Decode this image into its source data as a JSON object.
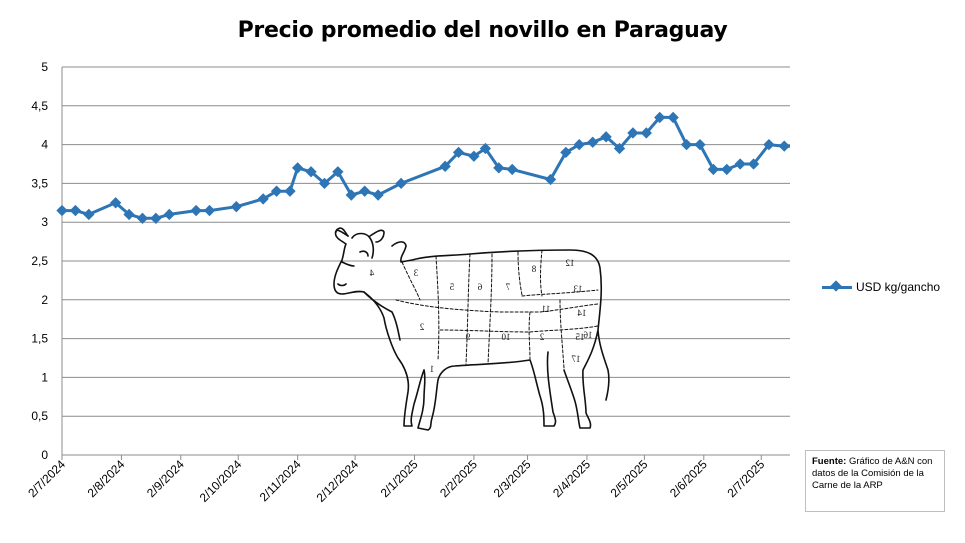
{
  "chart_data": {
    "type": "line",
    "title": "Precio promedio del novillo en Paraguay",
    "ylim": [
      0,
      5
    ],
    "y_ticks": [
      "0",
      "0,5",
      "1",
      "1,5",
      "2",
      "2,5",
      "3",
      "3,5",
      "4",
      "4,5",
      "5"
    ],
    "x_ticks": [
      "2/7/2024",
      "2/8/2024",
      "2/9/2024",
      "2/10/2024",
      "2/11/2024",
      "2/12/2024",
      "2/1/2025",
      "2/2/2025",
      "2/3/2025",
      "2/4/2025",
      "2/5/2025",
      "2/6/2025",
      "2/7/2025"
    ],
    "grid": true,
    "legend_position": "right",
    "series": [
      {
        "name": "USD kg/gancho",
        "color": "#2e75b6",
        "x": [
          "2024-07-02",
          "2024-07-09",
          "2024-07-16",
          "2024-07-30",
          "2024-08-06",
          "2024-08-13",
          "2024-08-20",
          "2024-08-27",
          "2024-09-10",
          "2024-09-17",
          "2024-10-01",
          "2024-10-15",
          "2024-10-22",
          "2024-10-29",
          "2024-11-02",
          "2024-11-09",
          "2024-11-16",
          "2024-11-23",
          "2024-11-30",
          "2024-12-07",
          "2024-12-14",
          "2024-12-26",
          "2025-01-18",
          "2025-01-25",
          "2025-02-02",
          "2025-02-08",
          "2025-02-15",
          "2025-02-22",
          "2025-03-14",
          "2025-03-22",
          "2025-03-29",
          "2025-04-05",
          "2025-04-12",
          "2025-04-19",
          "2025-04-26",
          "2025-05-03",
          "2025-05-10",
          "2025-05-17",
          "2025-05-24",
          "2025-05-31",
          "2025-06-07",
          "2025-06-14",
          "2025-06-21",
          "2025-06-28",
          "2025-07-06",
          "2025-07-14"
        ],
        "values": [
          3.15,
          3.15,
          3.1,
          3.25,
          3.1,
          3.05,
          3.05,
          3.1,
          3.15,
          3.15,
          3.2,
          3.3,
          3.4,
          3.4,
          3.7,
          3.65,
          3.5,
          3.65,
          3.35,
          3.4,
          3.35,
          3.5,
          3.72,
          3.9,
          3.85,
          3.95,
          3.7,
          3.68,
          3.55,
          3.9,
          4.0,
          4.03,
          4.1,
          3.95,
          4.15,
          4.15,
          4.35,
          4.35,
          4.0,
          4.0,
          3.68,
          3.68,
          3.75,
          3.75,
          4.0,
          3.98
        ]
      }
    ]
  },
  "source": {
    "label": "Fuente:",
    "text": "Gráfico de A&N con datos de la Comisión de la Carne de la ARP"
  },
  "illustration": {
    "cut_numbers": [
      "1",
      "2",
      "3",
      "4",
      "5",
      "6",
      "7",
      "8",
      "9",
      "10",
      "11",
      "12",
      "13",
      "14",
      "15",
      "16",
      "17",
      "2"
    ]
  }
}
